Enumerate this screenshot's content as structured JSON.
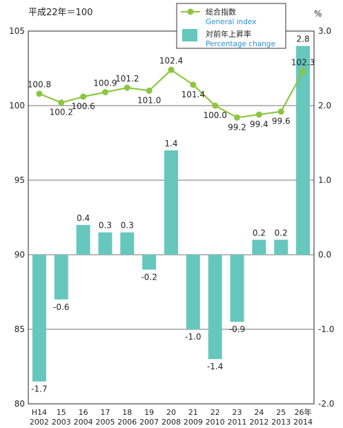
{
  "chart_data": {
    "type": "bar+line",
    "base_note": "平成22年＝100",
    "right_axis_unit": "%",
    "categories": [
      {
        "era": "H14",
        "year": "2002"
      },
      {
        "era": "15",
        "year": "2003"
      },
      {
        "era": "16",
        "year": "2004"
      },
      {
        "era": "17",
        "year": "2005"
      },
      {
        "era": "18",
        "year": "2006"
      },
      {
        "era": "19",
        "year": "2007"
      },
      {
        "era": "20",
        "year": "2008"
      },
      {
        "era": "21",
        "year": "2009"
      },
      {
        "era": "22",
        "year": "2010"
      },
      {
        "era": "23",
        "year": "2011"
      },
      {
        "era": "24",
        "year": "2012"
      },
      {
        "era": "25",
        "year": "2013"
      },
      {
        "era": "26年",
        "year": "2014"
      }
    ],
    "series": [
      {
        "name": "総合指数",
        "name_en": "General index",
        "axis": "left",
        "style": "line",
        "color": "#8cc63f",
        "values": [
          100.8,
          100.2,
          100.6,
          100.9,
          101.2,
          101.0,
          102.4,
          101.4,
          100.0,
          99.2,
          99.4,
          99.6,
          102.3
        ]
      },
      {
        "name": "対前年上昇率",
        "name_en": "Percentage change",
        "axis": "right",
        "style": "bar",
        "color": "#66c7bd",
        "values": [
          -1.7,
          -0.6,
          0.4,
          0.3,
          0.3,
          -0.2,
          1.4,
          -1.0,
          -1.4,
          -0.9,
          0.2,
          0.2,
          2.8
        ]
      }
    ],
    "left_axis": {
      "min": 80,
      "max": 105,
      "ticks": [
        "80",
        "85",
        "90",
        "95",
        "100",
        "105"
      ]
    },
    "right_axis": {
      "min": -2.0,
      "max": 3.0,
      "ticks": [
        "-2.0",
        "-1.0",
        "0.0",
        "1.0",
        "2.0",
        "3.0"
      ]
    },
    "line_labels": [
      "100.8",
      "100.2",
      "100.6",
      "100.9",
      "101.2",
      "101.0",
      "102.4",
      "101.4",
      "100.0",
      "99.2",
      "99.4",
      "99.6",
      "102.3"
    ],
    "bar_labels": [
      "-1.7",
      "-0.6",
      "0.4",
      "0.3",
      "0.3",
      "-0.2",
      "1.4",
      "-1.0",
      "-1.4",
      "-0.9",
      "0.2",
      "0.2",
      "2.8"
    ],
    "grid": "horizontal",
    "legend_position": "top-right",
    "grid_color": "#444444",
    "en_legend_color": "#2a8fd6"
  }
}
